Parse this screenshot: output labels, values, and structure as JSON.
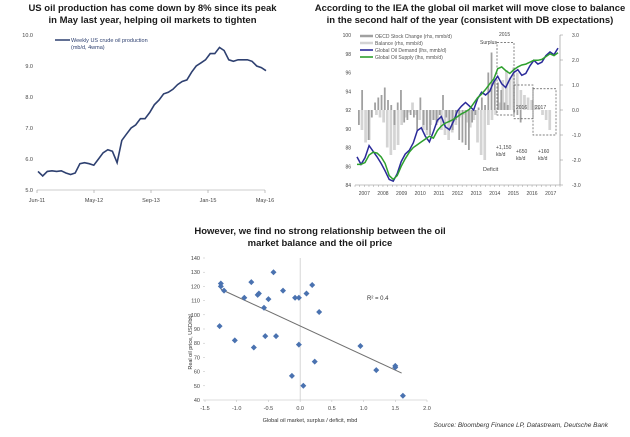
{
  "chart_data": [
    {
      "type": "line",
      "title": "US oil production has come down by 8% since its peak in May last year, helping oil markets to tighten",
      "title_lines": [
        "US oil production has come down by 8% since its peak",
        "in May last year, helping oil markets to tighten"
      ],
      "xlabel": "",
      "ylabel": "",
      "ylim": [
        5.0,
        10.0
      ],
      "yticks": [
        "5.0",
        "6.0",
        "7.0",
        "8.0",
        "9.0",
        "10.0"
      ],
      "xticks": [
        "Jun-11",
        "May-12",
        "Sep-13",
        "Jan-15",
        "May-16"
      ],
      "legend": [
        "Weekly US crude oil production",
        "(mb/d, 4wma)"
      ],
      "legend_position": "top-left",
      "series": [
        {
          "name": "Weekly US crude oil production (mb/d, 4wma)",
          "color": "#2e4070",
          "x": [
            0,
            1,
            2,
            3,
            4,
            5,
            6,
            7,
            8,
            9,
            10,
            11,
            12,
            13,
            14,
            15,
            16,
            17,
            18,
            19,
            20,
            21,
            22,
            23,
            24,
            25,
            26,
            27,
            28,
            29,
            30,
            31,
            32,
            33,
            34,
            35,
            36,
            37,
            38,
            39,
            40,
            41,
            42,
            43,
            44,
            45,
            46,
            47,
            48,
            49,
            50,
            51,
            52,
            53,
            54,
            55,
            56,
            57,
            58,
            59,
            60
          ],
          "values": [
            5.6,
            5.45,
            5.6,
            5.62,
            5.6,
            5.62,
            5.55,
            5.5,
            5.55,
            5.85,
            5.88,
            5.85,
            5.8,
            6.0,
            6.2,
            6.3,
            6.25,
            5.88,
            6.6,
            6.8,
            7.0,
            7.1,
            7.3,
            7.3,
            7.5,
            7.75,
            7.9,
            8.1,
            8.15,
            8.25,
            8.4,
            8.5,
            8.55,
            8.8,
            9.0,
            9.1,
            9.2,
            9.4,
            9.4,
            9.6,
            9.5,
            9.2,
            9.15,
            9.2,
            9.2,
            9.2,
            9.15,
            9.0,
            8.95,
            8.85,
            null,
            null,
            null,
            null,
            null,
            null,
            null,
            null,
            null,
            null,
            null
          ]
        }
      ]
    },
    {
      "type": "bar+line",
      "title": "According to the IEA the global oil market will move close to balance in the second half of the year (consistent with DB expectations)",
      "title_lines": [
        "According to the IEA the global oil market will move close to balance",
        "in the second half of the year (consistent with DB expectations)"
      ],
      "ylim_left": [
        84,
        100
      ],
      "ylim_right": [
        -3.0,
        3.0
      ],
      "yticks_left": [
        "84",
        "86",
        "88",
        "90",
        "92",
        "94",
        "96",
        "98",
        "100"
      ],
      "yticks_right": [
        "-3.0",
        "-2.0",
        "-1.0",
        "0.0",
        "1.0",
        "2.0",
        "3.0"
      ],
      "xticks": [
        "2007",
        "2008",
        "2009",
        "2010",
        "2011",
        "2012",
        "2013",
        "2014",
        "2015",
        "2016",
        "2017"
      ],
      "legend": [
        {
          "label": "OECD Stock Change (rhs, mmb/d)",
          "color": "#a0a0a0"
        },
        {
          "label": "Balance (rhs, mmb/d)",
          "color": "#d4d4d4"
        },
        {
          "label": "Global Oil Demand (lhs, mmb/d)",
          "color": "#2a2a9a"
        },
        {
          "label": "Global Oil Supply (lhs, mmb/d)",
          "color": "#2ea02e"
        }
      ],
      "legend_position": "top-left",
      "annotations": [
        "Surplus",
        "2015",
        "2016",
        "2017",
        "+1,150",
        "kb/d",
        "+650",
        "kb/d",
        "+160",
        "kb/d",
        "Deficit"
      ],
      "balance_bars": [
        0.0,
        -0.8,
        -1.3,
        -1.2,
        0.0,
        -0.2,
        -0.3,
        -0.5,
        -1.5,
        -1.8,
        -1.6,
        -1.4,
        -0.6,
        -0.3,
        -0.1,
        0.3,
        -0.2,
        -0.4,
        -0.8,
        -1.0,
        -0.6,
        -0.4,
        -0.5,
        -0.8,
        -1.0,
        -1.2,
        -0.9,
        -0.6,
        -0.3,
        -0.2,
        -0.5,
        -0.7,
        -0.4,
        -1.3,
        -1.8,
        -2.0,
        -0.6,
        -0.4,
        -0.2,
        0.3,
        1.2,
        1.6,
        1.3,
        1.7,
        1.5,
        0.8,
        0.6,
        0.5,
        0.4,
        0.2,
        0.1,
        -0.2,
        -0.4,
        -0.8
      ],
      "stock_bars": [
        -0.6,
        0.8,
        0.0,
        -1.2,
        -0.3,
        0.3,
        0.5,
        0.6,
        0.9,
        0.4,
        0.2,
        -0.6,
        0.3,
        0.8,
        -0.5,
        -0.4,
        -0.2,
        -0.3,
        -0.8,
        0.5,
        -0.6,
        -0.8,
        -1.0,
        -0.4,
        -0.6,
        -0.2,
        0.6,
        -0.3,
        -0.5,
        -0.8,
        -0.4,
        -1.2,
        -1.3,
        -1.4,
        -1.6,
        -0.5,
        -0.2,
        0.1,
        0.5,
        0.2,
        1.5,
        2.3,
        1.2,
        1.1,
        0.8,
        0.3,
        0.2,
        0.0,
        -0.1,
        -0.2,
        -0.5
      ],
      "series": [
        {
          "name": "Global Oil Demand (lhs, mmb/d)",
          "color": "#2a2a9a",
          "values": [
            87.0,
            86.2,
            86.9,
            88.2,
            87.6,
            87.0,
            86.3,
            85.5,
            84.6,
            84.4,
            85.2,
            86.5,
            87.3,
            87.7,
            88.5,
            89.8,
            90.1,
            89.2,
            88.6,
            89.7,
            90.9,
            91.3,
            90.2,
            89.9,
            90.8,
            91.9,
            92.4,
            92.8,
            92.4,
            92.0,
            93.2,
            93.9,
            93.6,
            94.0,
            95.0,
            95.6,
            94.8,
            94.4,
            95.3,
            96.0,
            96.3,
            95.7,
            95.9,
            96.7,
            97.3,
            96.9,
            97.1,
            97.8,
            98.2,
            97.9,
            98.6
          ]
        },
        {
          "name": "Global Oil Supply (lhs, mmb/d)",
          "color": "#2ea02e",
          "values": [
            86.2,
            86.2,
            86.4,
            87.2,
            87.5,
            87.4,
            87.0,
            86.3,
            85.0,
            84.6,
            85.0,
            86.0,
            86.8,
            87.5,
            88.0,
            88.3,
            88.6,
            88.9,
            89.2,
            89.0,
            89.8,
            90.3,
            90.6,
            90.8,
            91.0,
            91.3,
            91.6,
            91.8,
            92.1,
            92.7,
            93.3,
            93.7,
            94.2,
            94.8,
            95.3,
            96.4,
            96.6,
            96.2,
            95.9,
            96.3,
            96.6,
            96.8,
            96.9,
            97.1,
            97.3,
            97.3,
            97.4,
            97.7,
            98.0,
            97.8,
            98.1
          ]
        }
      ]
    },
    {
      "type": "scatter",
      "title": "However, we find no strong relationship between the oil market balance and the oil price",
      "title_lines": [
        "However, we find no strong relationship between the oil",
        "market balance and the oil price"
      ],
      "xlabel": "Global oil market, surplus / deficit, mbd",
      "ylabel": "Real oil price, USD/bbl",
      "xlim": [
        -1.5,
        2.0
      ],
      "ylim": [
        40,
        140
      ],
      "xticks": [
        "-1.5",
        "-1.0",
        "-0.5",
        "0.0",
        "0.5",
        "1.0",
        "1.5",
        "2.0"
      ],
      "yticks": [
        "40",
        "50",
        "60",
        "70",
        "80",
        "90",
        "100",
        "110",
        "120",
        "130",
        "140"
      ],
      "annotation": "R² = 0.4",
      "marker_color": "#4a72b0",
      "trendline": {
        "x": [
          -1.25,
          1.6
        ],
        "y": [
          118,
          59
        ],
        "color": "#707070"
      },
      "points": [
        {
          "x": -1.25,
          "y": 122
        },
        {
          "x": -1.25,
          "y": 120
        },
        {
          "x": -1.2,
          "y": 117
        },
        {
          "x": -1.27,
          "y": 92
        },
        {
          "x": -1.03,
          "y": 82
        },
        {
          "x": -0.88,
          "y": 112
        },
        {
          "x": -0.77,
          "y": 123
        },
        {
          "x": -0.73,
          "y": 77
        },
        {
          "x": -0.67,
          "y": 114
        },
        {
          "x": -0.65,
          "y": 115
        },
        {
          "x": -0.57,
          "y": 105
        },
        {
          "x": -0.55,
          "y": 85
        },
        {
          "x": -0.5,
          "y": 111
        },
        {
          "x": -0.42,
          "y": 130
        },
        {
          "x": -0.38,
          "y": 85
        },
        {
          "x": -0.27,
          "y": 117
        },
        {
          "x": -0.13,
          "y": 57
        },
        {
          "x": -0.08,
          "y": 112
        },
        {
          "x": -0.02,
          "y": 112
        },
        {
          "x": -0.02,
          "y": 79
        },
        {
          "x": 0.05,
          "y": 50
        },
        {
          "x": 0.1,
          "y": 115
        },
        {
          "x": 0.19,
          "y": 121
        },
        {
          "x": 0.23,
          "y": 67
        },
        {
          "x": 0.3,
          "y": 102
        },
        {
          "x": 0.95,
          "y": 78
        },
        {
          "x": 1.2,
          "y": 61
        },
        {
          "x": 1.5,
          "y": 64
        },
        {
          "x": 1.5,
          "y": 63
        },
        {
          "x": 1.62,
          "y": 43
        }
      ]
    }
  ],
  "source": "Source: Bloomberg Finance LP, Datastream, Deutsche Bank"
}
